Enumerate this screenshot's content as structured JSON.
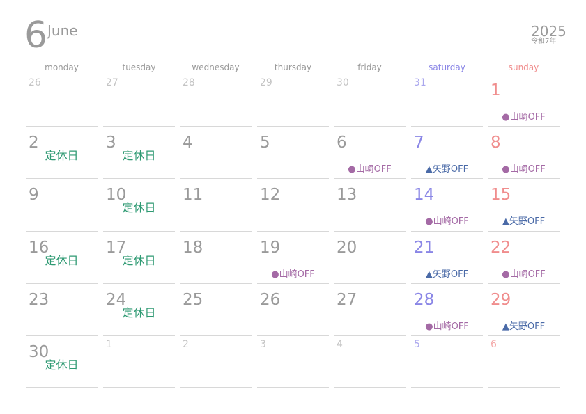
{
  "header": {
    "month_number": "6",
    "month_name": "June",
    "year": "2025",
    "era": "令和7年"
  },
  "weekdays": [
    "monday",
    "tuesday",
    "wednesday",
    "thursday",
    "friday",
    "saturday",
    "sunday"
  ],
  "colors": {
    "saturday": "#8a86e6",
    "sunday": "#f08d8d",
    "closed_day": "#2f9a73",
    "yamazaki_off": "#a46aa5",
    "yano_off": "#4a6aa7"
  },
  "weeks": [
    [
      {
        "day": "26",
        "other_month": true
      },
      {
        "day": "27",
        "other_month": true
      },
      {
        "day": "28",
        "other_month": true
      },
      {
        "day": "29",
        "other_month": true
      },
      {
        "day": "30",
        "other_month": true
      },
      {
        "day": "31",
        "other_month": true
      },
      {
        "day": "1",
        "event": "●山崎OFF",
        "event_type": "yamazaki"
      }
    ],
    [
      {
        "day": "2",
        "note": "定休日"
      },
      {
        "day": "3",
        "note": "定休日"
      },
      {
        "day": "4"
      },
      {
        "day": "5"
      },
      {
        "day": "6",
        "event": "●山崎OFF",
        "event_type": "yamazaki"
      },
      {
        "day": "7",
        "event": "▲矢野OFF",
        "event_type": "yano"
      },
      {
        "day": "8",
        "event": "●山崎OFF",
        "event_type": "yamazaki"
      }
    ],
    [
      {
        "day": "9"
      },
      {
        "day": "10",
        "note": "定休日"
      },
      {
        "day": "11"
      },
      {
        "day": "12"
      },
      {
        "day": "13"
      },
      {
        "day": "14",
        "event": "●山崎OFF",
        "event_type": "yamazaki"
      },
      {
        "day": "15",
        "event": "▲矢野OFF",
        "event_type": "yano"
      }
    ],
    [
      {
        "day": "16",
        "note": "定休日"
      },
      {
        "day": "17",
        "note": "定休日"
      },
      {
        "day": "18"
      },
      {
        "day": "19",
        "event": "●山崎OFF",
        "event_type": "yamazaki"
      },
      {
        "day": "20"
      },
      {
        "day": "21",
        "event": "▲矢野OFF",
        "event_type": "yano"
      },
      {
        "day": "22",
        "event": "●山崎OFF",
        "event_type": "yamazaki"
      }
    ],
    [
      {
        "day": "23"
      },
      {
        "day": "24",
        "note": "定休日"
      },
      {
        "day": "25"
      },
      {
        "day": "26"
      },
      {
        "day": "27"
      },
      {
        "day": "28",
        "event": "●山崎OFF",
        "event_type": "yamazaki"
      },
      {
        "day": "29",
        "event": "▲矢野OFF",
        "event_type": "yano"
      }
    ],
    [
      {
        "day": "30",
        "note": "定休日"
      },
      {
        "day": "1",
        "other_month": true
      },
      {
        "day": "2",
        "other_month": true
      },
      {
        "day": "3",
        "other_month": true
      },
      {
        "day": "4",
        "other_month": true
      },
      {
        "day": "5",
        "other_month": true
      },
      {
        "day": "6",
        "other_month": true
      }
    ]
  ]
}
